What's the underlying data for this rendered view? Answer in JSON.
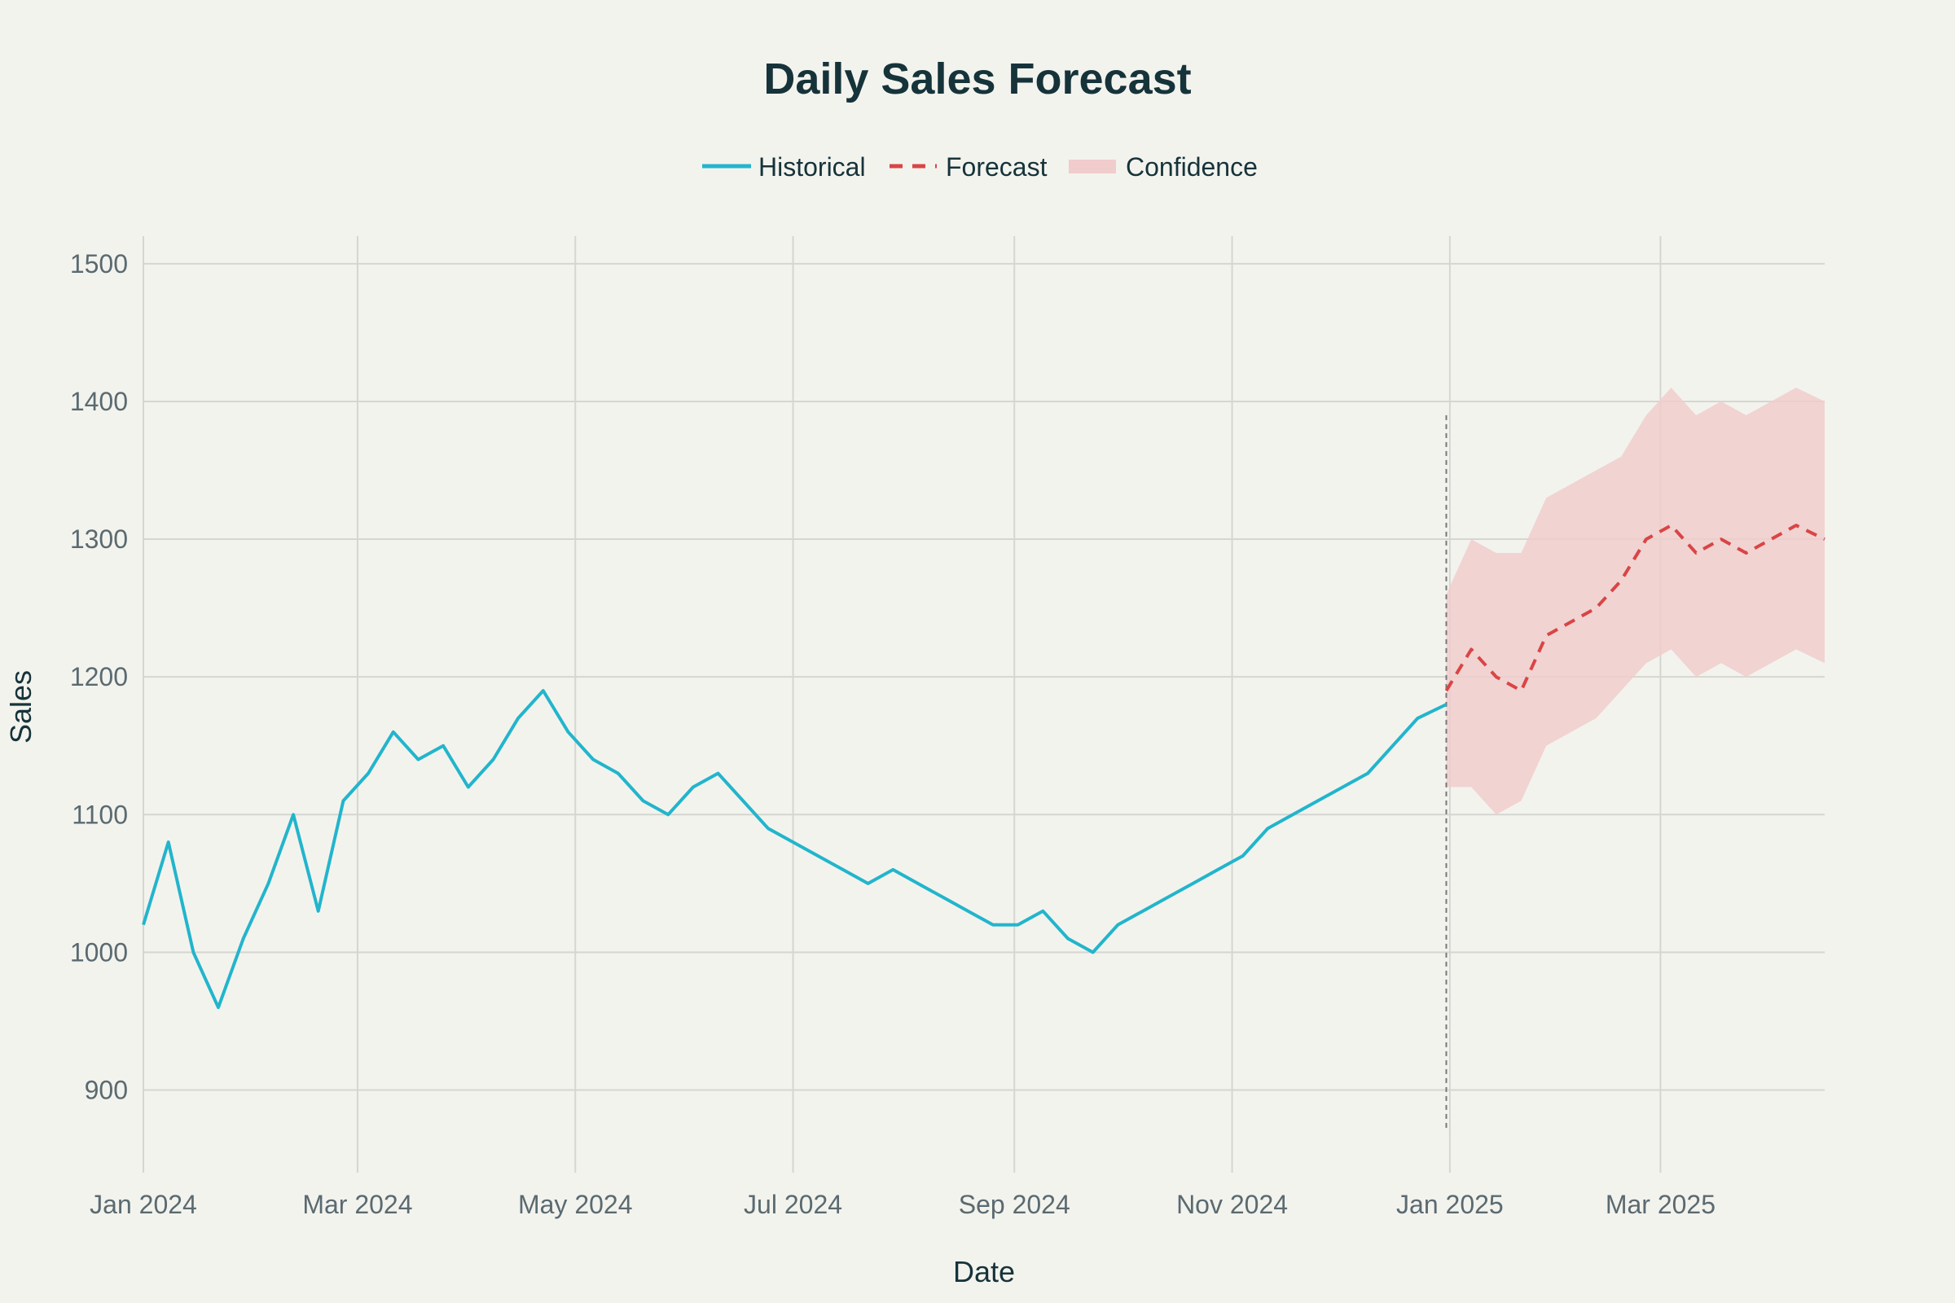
{
  "chart_data": {
    "type": "line",
    "title": "Daily Sales Forecast",
    "xlabel": "Date",
    "ylabel": "Sales",
    "ylim": [
      840,
      1520
    ],
    "xlim": [
      "2024-01-01",
      "2025-04-16"
    ],
    "grid": true,
    "legend_placement": "top-center",
    "x_ticks": [
      {
        "date": "2024-01-01",
        "label": "Jan 2024"
      },
      {
        "date": "2024-03-01",
        "label": "Mar 2024"
      },
      {
        "date": "2024-05-01",
        "label": "May 2024"
      },
      {
        "date": "2024-07-01",
        "label": "Jul 2024"
      },
      {
        "date": "2024-09-01",
        "label": "Sep 2024"
      },
      {
        "date": "2024-11-01",
        "label": "Nov 2024"
      },
      {
        "date": "2025-01-01",
        "label": "Jan 2025"
      },
      {
        "date": "2025-03-01",
        "label": "Mar 2025"
      }
    ],
    "y_ticks": [
      900,
      1000,
      1100,
      1200,
      1300,
      1400,
      1500
    ],
    "forecast_start": "2024-12-31",
    "series": [
      {
        "name": "Historical",
        "style": "solid",
        "color": "#22b5cc",
        "points": [
          [
            "2024-01-01",
            1020
          ],
          [
            "2024-01-08",
            1080
          ],
          [
            "2024-01-15",
            1000
          ],
          [
            "2024-01-22",
            960
          ],
          [
            "2024-01-29",
            1010
          ],
          [
            "2024-02-05",
            1050
          ],
          [
            "2024-02-12",
            1100
          ],
          [
            "2024-02-19",
            1030
          ],
          [
            "2024-02-26",
            1110
          ],
          [
            "2024-03-04",
            1130
          ],
          [
            "2024-03-11",
            1160
          ],
          [
            "2024-03-18",
            1140
          ],
          [
            "2024-03-25",
            1150
          ],
          [
            "2024-04-01",
            1120
          ],
          [
            "2024-04-08",
            1140
          ],
          [
            "2024-04-15",
            1170
          ],
          [
            "2024-04-22",
            1190
          ],
          [
            "2024-04-29",
            1160
          ],
          [
            "2024-05-06",
            1140
          ],
          [
            "2024-05-13",
            1130
          ],
          [
            "2024-05-20",
            1110
          ],
          [
            "2024-05-27",
            1100
          ],
          [
            "2024-06-03",
            1120
          ],
          [
            "2024-06-10",
            1130
          ],
          [
            "2024-06-17",
            1110
          ],
          [
            "2024-06-24",
            1090
          ],
          [
            "2024-07-01",
            1080
          ],
          [
            "2024-07-08",
            1070
          ],
          [
            "2024-07-15",
            1060
          ],
          [
            "2024-07-22",
            1050
          ],
          [
            "2024-07-29",
            1060
          ],
          [
            "2024-08-05",
            1050
          ],
          [
            "2024-08-12",
            1040
          ],
          [
            "2024-08-19",
            1030
          ],
          [
            "2024-08-26",
            1020
          ],
          [
            "2024-09-02",
            1020
          ],
          [
            "2024-09-09",
            1030
          ],
          [
            "2024-09-16",
            1010
          ],
          [
            "2024-09-23",
            1000
          ],
          [
            "2024-09-30",
            1020
          ],
          [
            "2024-10-07",
            1030
          ],
          [
            "2024-10-14",
            1040
          ],
          [
            "2024-10-21",
            1050
          ],
          [
            "2024-10-28",
            1060
          ],
          [
            "2024-11-04",
            1070
          ],
          [
            "2024-11-11",
            1090
          ],
          [
            "2024-11-18",
            1100
          ],
          [
            "2024-11-25",
            1110
          ],
          [
            "2024-12-02",
            1120
          ],
          [
            "2024-12-09",
            1130
          ],
          [
            "2024-12-16",
            1150
          ],
          [
            "2024-12-23",
            1170
          ],
          [
            "2024-12-31",
            1180
          ]
        ]
      },
      {
        "name": "Forecast",
        "style": "dashed",
        "color": "#d94545",
        "points": [
          [
            "2024-12-31",
            1190
          ],
          [
            "2025-01-07",
            1220
          ],
          [
            "2025-01-14",
            1200
          ],
          [
            "2025-01-21",
            1190
          ],
          [
            "2025-01-28",
            1230
          ],
          [
            "2025-02-04",
            1240
          ],
          [
            "2025-02-11",
            1250
          ],
          [
            "2025-02-18",
            1270
          ],
          [
            "2025-02-25",
            1300
          ],
          [
            "2025-03-04",
            1310
          ],
          [
            "2025-03-11",
            1290
          ],
          [
            "2025-03-18",
            1300
          ],
          [
            "2025-03-25",
            1290
          ],
          [
            "2025-04-01",
            1300
          ],
          [
            "2025-04-08",
            1310
          ],
          [
            "2025-04-16",
            1300
          ]
        ]
      },
      {
        "name": "Confidence",
        "style": "band",
        "color": "#f0cccc",
        "lower": [
          1120,
          1120,
          1100,
          1110,
          1150,
          1160,
          1170,
          1190,
          1210,
          1220,
          1200,
          1210,
          1200,
          1210,
          1220,
          1210
        ],
        "upper": [
          1260,
          1300,
          1290,
          1290,
          1330,
          1340,
          1350,
          1360,
          1390,
          1410,
          1390,
          1400,
          1390,
          1400,
          1410,
          1400
        ]
      }
    ]
  }
}
